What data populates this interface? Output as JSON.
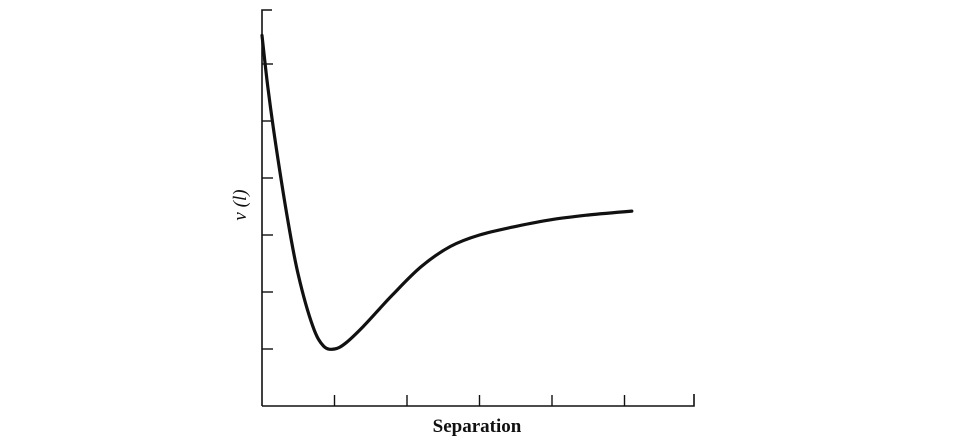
{
  "chart_data": {
    "type": "line",
    "xlabel": "Separation",
    "ylabel": "v (l)",
    "grid": false,
    "xlim": [
      0,
      6
    ],
    "ylim": [
      0,
      7
    ],
    "x_tick_count": 6,
    "y_tick_count": 7,
    "series": [
      {
        "values_x": [
          0.0,
          0.08,
          0.2,
          0.35,
          0.5,
          0.7,
          0.85,
          1.0,
          1.15,
          1.4,
          1.8,
          2.2,
          2.6,
          3.0,
          3.5,
          4.0,
          4.5,
          5.1
        ],
        "values_y": [
          6.5,
          5.6,
          4.5,
          3.3,
          2.3,
          1.4,
          1.05,
          1.0,
          1.1,
          1.4,
          1.95,
          2.45,
          2.8,
          3.0,
          3.15,
          3.27,
          3.35,
          3.42
        ]
      }
    ]
  }
}
